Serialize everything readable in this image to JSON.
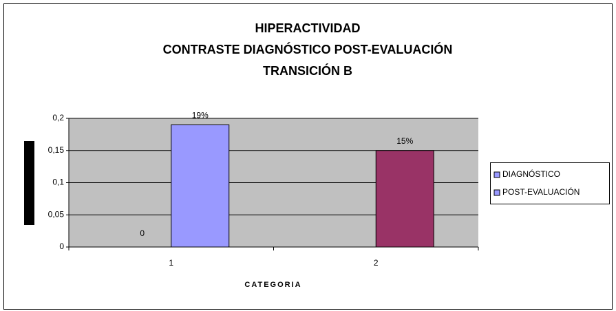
{
  "chart_data": {
    "type": "bar",
    "title": [
      "HIPERACTIVIDAD",
      "CONTRASTE DIAGNÓSTICO POST-EVALUACIÓN",
      "TRANSICIÓN B"
    ],
    "x_label": "CATEGORIA",
    "categories": [
      "1",
      "2"
    ],
    "series": [
      {
        "name": "DIAGNÓSTICO",
        "color": "#9999FF",
        "values": [
          0,
          null
        ],
        "value_labels": [
          "0",
          null
        ]
      },
      {
        "name": "POST-EVALUACIÓN",
        "color": "#9999FF",
        "colors": [
          "#9999FF",
          "#993366"
        ],
        "values": [
          0.19,
          0.15
        ],
        "value_labels": [
          "19%",
          "15%"
        ]
      }
    ],
    "ylim": [
      0,
      0.2
    ],
    "yticks": [
      0,
      {
        "value": 0.05,
        "label": "0,05"
      },
      {
        "value": 0.1,
        "label": "0,1"
      },
      {
        "value": 0.15,
        "label": "0,15"
      },
      {
        "value": 0.2,
        "label": "0,2"
      }
    ],
    "grid": true,
    "legend": "right"
  }
}
